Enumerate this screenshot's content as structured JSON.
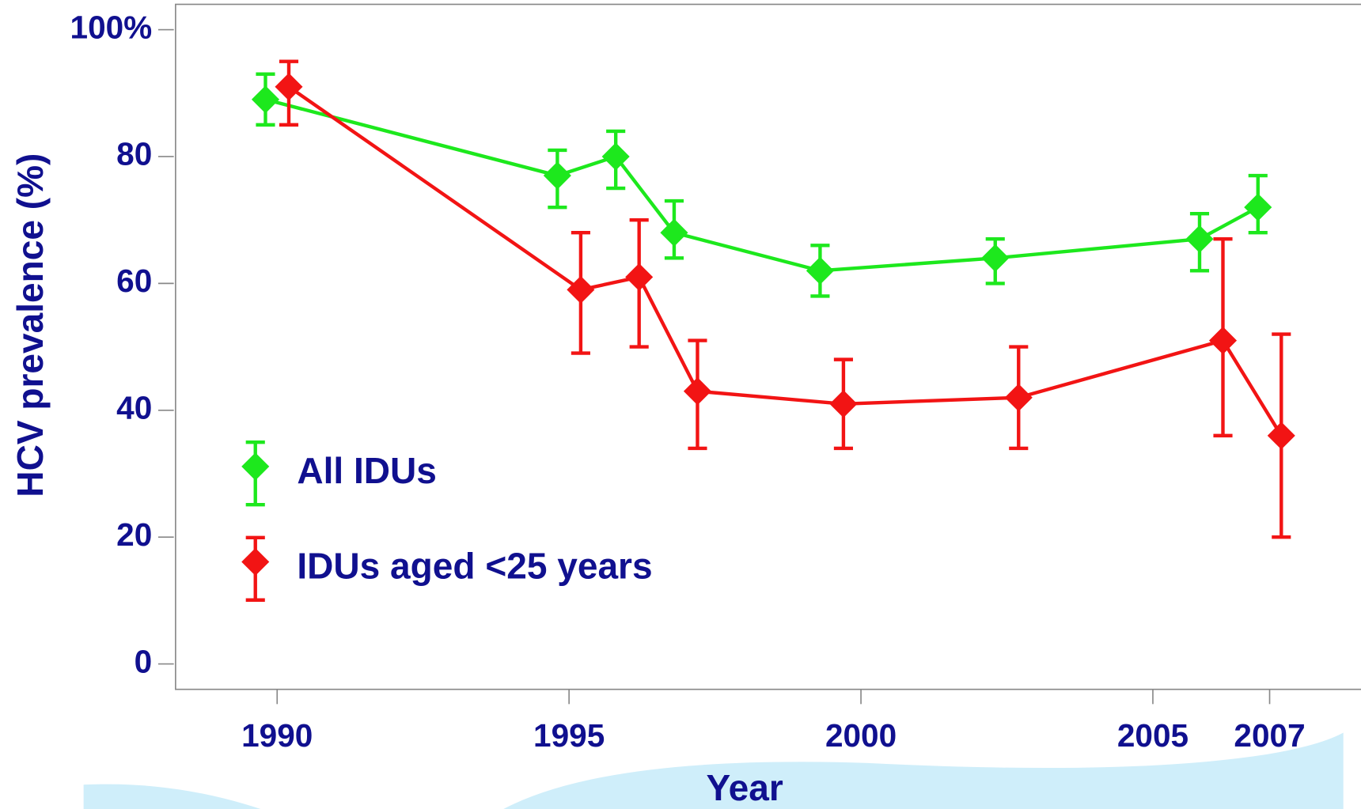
{
  "chart_data": {
    "type": "line",
    "x_label": "Year",
    "y_label": "HCV prevalence (%)",
    "xlim": [
      1988.26,
      2008.56
    ],
    "ylim": [
      -4,
      104
    ],
    "xticks": [
      1990,
      1995,
      2000,
      2005,
      2007
    ],
    "yticks": [
      0,
      20,
      40,
      60,
      80,
      {
        "value": 100,
        "label": "100%"
      }
    ],
    "legend": "lower left",
    "series": [
      {
        "name": "All IDUs",
        "color": "#1de81d",
        "x": [
          1989.8,
          1994.8,
          1995.8,
          1996.8,
          1999.3,
          2002.3,
          2005.8,
          2006.8
        ],
        "values": [
          89,
          77,
          80,
          68,
          62,
          64,
          67,
          72
        ],
        "lower": [
          85,
          72,
          75,
          64,
          58,
          60,
          62,
          68
        ],
        "upper": [
          93,
          81,
          84,
          73,
          66,
          67,
          71,
          77
        ]
      },
      {
        "name": "IDUs aged <25 years",
        "color": "#f21414",
        "x": [
          1990.2,
          1995.2,
          1996.2,
          1997.2,
          1999.7,
          2002.7,
          2006.2,
          2007.2
        ],
        "values": [
          91,
          59,
          61,
          43,
          41,
          42,
          51,
          36
        ],
        "lower": [
          85,
          49,
          50,
          34,
          34,
          34,
          36,
          20
        ],
        "upper": [
          95,
          68,
          70,
          51,
          48,
          50,
          67,
          52
        ]
      }
    ]
  }
}
